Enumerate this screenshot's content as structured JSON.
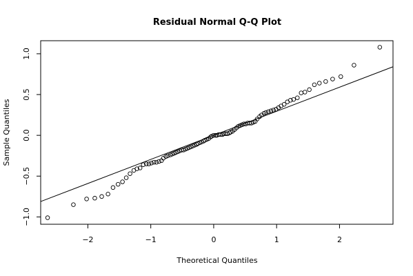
{
  "chart_data": {
    "type": "scatter",
    "title": "Residual Normal Q-Q Plot",
    "xlabel": "Theoretical Quantiles",
    "ylabel": "Sample Quantiles",
    "xlim": [
      -2.75,
      2.85
    ],
    "ylim": [
      -1.09,
      1.16
    ],
    "xticks": [
      -2,
      -1,
      0,
      1,
      2
    ],
    "xtick_labels": [
      "−2",
      "−1",
      "0",
      "1",
      "2"
    ],
    "yticks": [
      -1.0,
      -0.5,
      0.0,
      0.5,
      1.0
    ],
    "ytick_labels": [
      "−1.0",
      "−0.5",
      "0.0",
      "0.5",
      "1.0"
    ],
    "grid": false,
    "reference_line": {
      "intercept": 0.0,
      "slope": 0.295
    },
    "points": [
      [
        -2.64,
        -1.01
      ],
      [
        -2.23,
        -0.85
      ],
      [
        -2.02,
        -0.78
      ],
      [
        -1.89,
        -0.77
      ],
      [
        -1.78,
        -0.75
      ],
      [
        -1.68,
        -0.72
      ],
      [
        -1.6,
        -0.64
      ],
      [
        -1.52,
        -0.6
      ],
      [
        -1.45,
        -0.57
      ],
      [
        -1.39,
        -0.52
      ],
      [
        -1.33,
        -0.47
      ],
      [
        -1.27,
        -0.43
      ],
      [
        -1.22,
        -0.41
      ],
      [
        -1.17,
        -0.4
      ],
      [
        -1.12,
        -0.36
      ],
      [
        -1.07,
        -0.35
      ],
      [
        -1.03,
        -0.35
      ],
      [
        -0.99,
        -0.34
      ],
      [
        -0.95,
        -0.33
      ],
      [
        -0.91,
        -0.33
      ],
      [
        -0.87,
        -0.32
      ],
      [
        -0.83,
        -0.31
      ],
      [
        -0.8,
        -0.28
      ],
      [
        -0.76,
        -0.26
      ],
      [
        -0.73,
        -0.25
      ],
      [
        -0.69,
        -0.24
      ],
      [
        -0.66,
        -0.23
      ],
      [
        -0.63,
        -0.22
      ],
      [
        -0.6,
        -0.21
      ],
      [
        -0.57,
        -0.2
      ],
      [
        -0.54,
        -0.19
      ],
      [
        -0.51,
        -0.18
      ],
      [
        -0.48,
        -0.18
      ],
      [
        -0.45,
        -0.17
      ],
      [
        -0.42,
        -0.16
      ],
      [
        -0.39,
        -0.15
      ],
      [
        -0.36,
        -0.14
      ],
      [
        -0.33,
        -0.13
      ],
      [
        -0.3,
        -0.12
      ],
      [
        -0.27,
        -0.11
      ],
      [
        -0.25,
        -0.1
      ],
      [
        -0.22,
        -0.09
      ],
      [
        -0.19,
        -0.08
      ],
      [
        -0.16,
        -0.07
      ],
      [
        -0.14,
        -0.06
      ],
      [
        -0.11,
        -0.05
      ],
      [
        -0.08,
        -0.04
      ],
      [
        -0.05,
        -0.02
      ],
      [
        -0.03,
        -0.01
      ],
      [
        0.0,
        0.0
      ],
      [
        0.03,
        0.0
      ],
      [
        0.05,
        0.0
      ],
      [
        0.08,
        0.01
      ],
      [
        0.11,
        0.01
      ],
      [
        0.14,
        0.01
      ],
      [
        0.16,
        0.02
      ],
      [
        0.19,
        0.02
      ],
      [
        0.22,
        0.02
      ],
      [
        0.25,
        0.03
      ],
      [
        0.27,
        0.04
      ],
      [
        0.3,
        0.05
      ],
      [
        0.33,
        0.07
      ],
      [
        0.36,
        0.09
      ],
      [
        0.39,
        0.11
      ],
      [
        0.42,
        0.12
      ],
      [
        0.45,
        0.13
      ],
      [
        0.48,
        0.14
      ],
      [
        0.51,
        0.14
      ],
      [
        0.54,
        0.15
      ],
      [
        0.57,
        0.15
      ],
      [
        0.6,
        0.15
      ],
      [
        0.63,
        0.16
      ],
      [
        0.66,
        0.17
      ],
      [
        0.69,
        0.2
      ],
      [
        0.73,
        0.23
      ],
      [
        0.76,
        0.25
      ],
      [
        0.8,
        0.27
      ],
      [
        0.83,
        0.28
      ],
      [
        0.87,
        0.29
      ],
      [
        0.91,
        0.3
      ],
      [
        0.95,
        0.31
      ],
      [
        0.99,
        0.32
      ],
      [
        1.03,
        0.34
      ],
      [
        1.07,
        0.36
      ],
      [
        1.12,
        0.38
      ],
      [
        1.17,
        0.41
      ],
      [
        1.22,
        0.43
      ],
      [
        1.27,
        0.44
      ],
      [
        1.33,
        0.46
      ],
      [
        1.39,
        0.52
      ],
      [
        1.45,
        0.53
      ],
      [
        1.52,
        0.56
      ],
      [
        1.6,
        0.62
      ],
      [
        1.68,
        0.64
      ],
      [
        1.78,
        0.66
      ],
      [
        1.89,
        0.69
      ],
      [
        2.02,
        0.72
      ],
      [
        2.23,
        0.86
      ],
      [
        2.64,
        1.08
      ]
    ]
  }
}
